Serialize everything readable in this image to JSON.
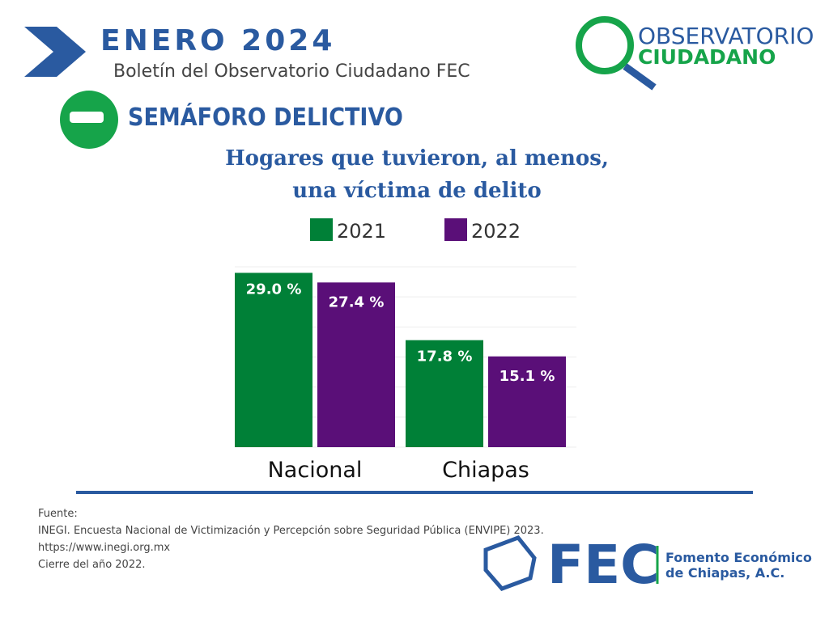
{
  "header": {
    "month": "ENERO  2024",
    "subtitle": "Boletín del Observatorio Ciudadano FEC",
    "section": "SEMÁFORO DELICTIVO",
    "logo_top": "OBSERVATORIO",
    "logo_bottom": "CIUDADANO"
  },
  "chart_data": {
    "type": "bar",
    "title": "Hogares que tuvieron, al menos, una víctima de delito",
    "categories": [
      "Nacional",
      "Chiapas"
    ],
    "series": [
      {
        "name": "2021",
        "color": "#008037",
        "values": [
          29.0,
          17.8
        ],
        "value_labels": [
          "29.0 %",
          "17.8 %"
        ]
      },
      {
        "name": "2022",
        "color": "#5a0f78",
        "values": [
          27.4,
          15.1
        ],
        "value_labels": [
          "27.4 %",
          "15.1 %"
        ]
      }
    ],
    "ylim": [
      0,
      30
    ],
    "yticks": [
      0,
      5,
      10,
      15,
      20,
      25,
      30
    ],
    "grid": true
  },
  "footer": {
    "source": [
      "Fuente:",
      "INEGI. Encuesta Nacional de Victimización y Percepción sobre Seguridad Pública (ENVIPE) 2023.",
      "https://www.inegi.org.mx",
      "Cierre del año 2022."
    ],
    "brand": "FEC",
    "brand_name": [
      "Fomento Económico",
      "de Chiapas, A.C."
    ]
  }
}
